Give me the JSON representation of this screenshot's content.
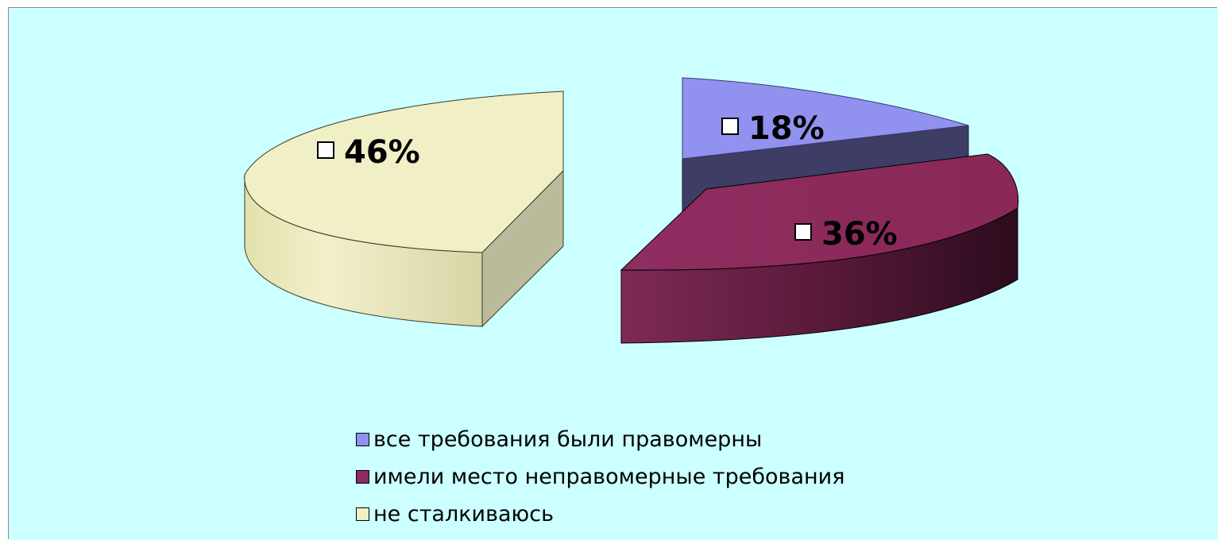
{
  "chart_data": {
    "type": "pie",
    "style": "3d-exploded",
    "background": "#ccffff",
    "slices": [
      {
        "label": "все требования были правомерны",
        "value": 18,
        "display": "18%",
        "color": "#9191f0"
      },
      {
        "label": "имели место неправомерные требования",
        "value": 36,
        "display": "36%",
        "color": "#8e2b5e"
      },
      {
        "label": "не сталкиваюсь",
        "value": 46,
        "display": "46%",
        "color": "#f0efc6"
      }
    ],
    "legend_position": "bottom-center"
  }
}
